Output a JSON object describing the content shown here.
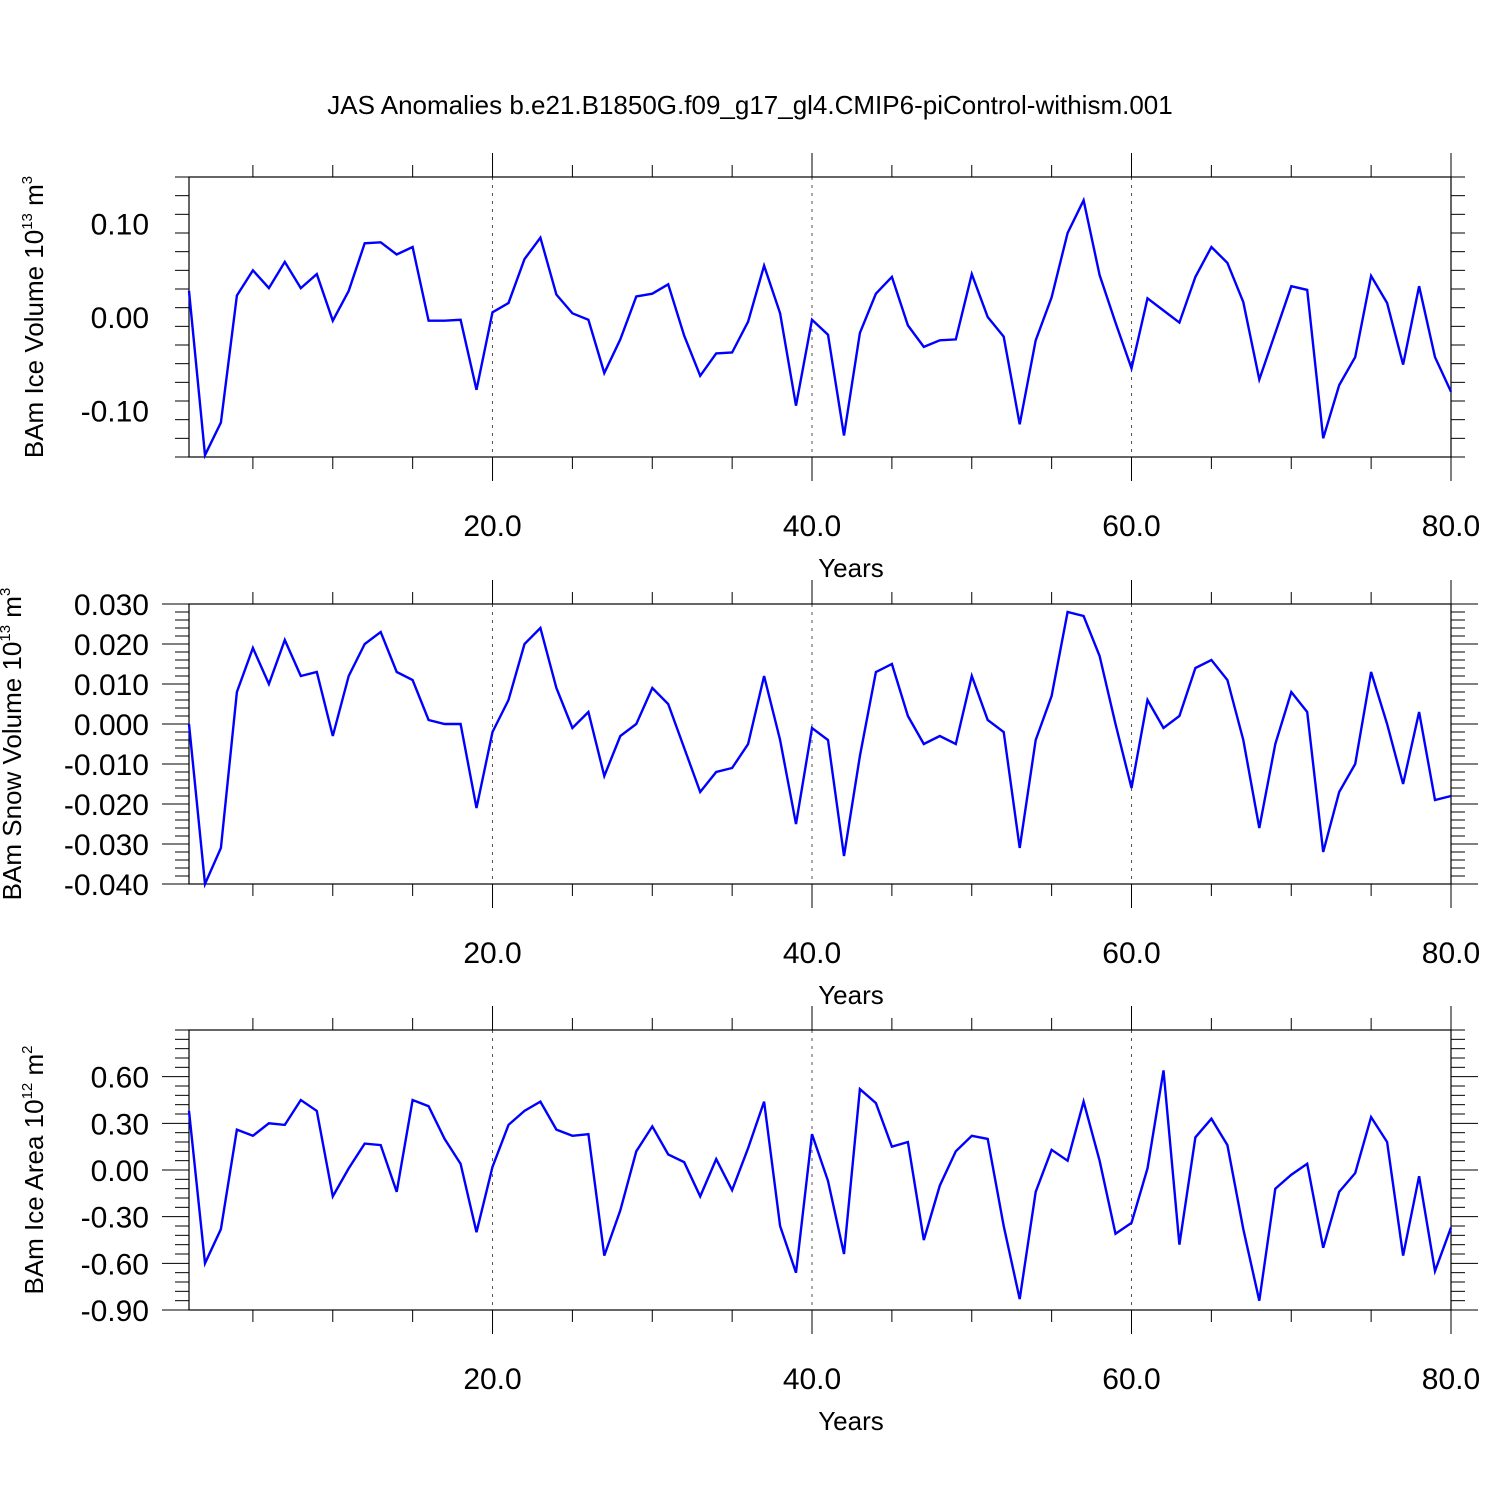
{
  "title": "JAS Anomalies b.e21.B1850G.f09_g17_gl4.CMIP6-piControl-withism.001",
  "colors": {
    "line": "#0000ff",
    "axis": "#000000",
    "grid": "#555555"
  },
  "chart_data": [
    {
      "type": "line",
      "xlabel": "Years",
      "ylabel_main": "BAm Ice Volume 10",
      "ylabel_exp": "13",
      "ylabel_unit": " m",
      "ylabel_unit_exp": "3",
      "xlim": [
        1,
        80
      ],
      "ylim": [
        -0.15,
        0.15
      ],
      "x_ticks": [
        20,
        40,
        60,
        80
      ],
      "x_tick_labels": [
        "20.0",
        "40.0",
        "60.0",
        "80.0"
      ],
      "y_ticks": [
        -0.1,
        0.0,
        0.1
      ],
      "y_tick_labels": [
        "-0.10",
        "0.00",
        "0.10"
      ],
      "grid_x": [
        20,
        40,
        60
      ],
      "values": [
        0.028,
        -0.148,
        -0.113,
        0.023,
        0.05,
        0.031,
        0.059,
        0.031,
        0.046,
        -0.004,
        0.028,
        0.079,
        0.08,
        0.067,
        0.075,
        -0.004,
        -0.004,
        -0.003,
        -0.078,
        0.005,
        0.015,
        0.062,
        0.085,
        0.024,
        0.004,
        -0.003,
        -0.06,
        -0.024,
        0.022,
        0.025,
        0.035,
        -0.02,
        -0.063,
        -0.039,
        -0.038,
        -0.005,
        0.055,
        0.004,
        -0.095,
        -0.003,
        -0.019,
        -0.127,
        -0.017,
        0.025,
        0.043,
        -0.009,
        -0.032,
        -0.025,
        -0.024,
        0.046,
        0.0,
        -0.021,
        -0.115,
        -0.025,
        0.021,
        0.09,
        0.125,
        0.045,
        -0.006,
        -0.055,
        0.02,
        0.007,
        -0.006,
        0.043,
        0.075,
        0.058,
        0.016,
        -0.067,
        -0.017,
        0.033,
        0.029,
        -0.13,
        -0.073,
        -0.043,
        0.044,
        0.015,
        -0.051,
        0.033,
        -0.043,
        -0.08
      ]
    },
    {
      "type": "line",
      "xlabel": "Years",
      "ylabel_main": "BAm Snow Volume 10",
      "ylabel_exp": "13",
      "ylabel_unit": " m",
      "ylabel_unit_exp": "3",
      "xlim": [
        1,
        80
      ],
      "ylim": [
        -0.04,
        0.03
      ],
      "x_ticks": [
        20,
        40,
        60,
        80
      ],
      "x_tick_labels": [
        "20.0",
        "40.0",
        "60.0",
        "80.0"
      ],
      "y_ticks": [
        -0.04,
        -0.03,
        -0.02,
        -0.01,
        0.0,
        0.01,
        0.02,
        0.03
      ],
      "y_tick_labels": [
        "-0.040",
        "-0.030",
        "-0.020",
        "-0.010",
        "0.000",
        "0.010",
        "0.020",
        "0.030"
      ],
      "grid_x": [
        20,
        40,
        60
      ],
      "values": [
        0.0,
        -0.04,
        -0.031,
        0.008,
        0.019,
        0.01,
        0.021,
        0.012,
        0.013,
        -0.003,
        0.012,
        0.02,
        0.023,
        0.013,
        0.011,
        0.001,
        0.0,
        0.0,
        -0.021,
        -0.002,
        0.006,
        0.02,
        0.024,
        0.009,
        -0.001,
        0.003,
        -0.013,
        -0.003,
        0.0,
        0.009,
        0.005,
        -0.006,
        -0.017,
        -0.012,
        -0.011,
        -0.005,
        0.012,
        -0.004,
        -0.025,
        -0.001,
        -0.004,
        -0.033,
        -0.008,
        0.013,
        0.015,
        0.002,
        -0.005,
        -0.003,
        -0.005,
        0.012,
        0.001,
        -0.002,
        -0.031,
        -0.004,
        0.007,
        0.028,
        0.027,
        0.017,
        0.0,
        -0.016,
        0.006,
        -0.001,
        0.002,
        0.014,
        0.016,
        0.011,
        -0.004,
        -0.026,
        -0.005,
        0.008,
        0.003,
        -0.032,
        -0.017,
        -0.01,
        0.013,
        0.0,
        -0.015,
        0.003,
        -0.019,
        -0.018
      ]
    },
    {
      "type": "line",
      "xlabel": "Years",
      "ylabel_main": "BAm Ice Area 10",
      "ylabel_exp": "12",
      "ylabel_unit": " m",
      "ylabel_unit_exp": "2",
      "xlim": [
        1,
        80
      ],
      "ylim": [
        -0.9,
        0.9
      ],
      "x_ticks": [
        20,
        40,
        60,
        80
      ],
      "x_tick_labels": [
        "20.0",
        "40.0",
        "60.0",
        "80.0"
      ],
      "y_ticks": [
        -0.9,
        -0.6,
        -0.3,
        0.0,
        0.3,
        0.6
      ],
      "y_tick_labels": [
        "-0.90",
        "-0.60",
        "-0.30",
        "0.00",
        "0.30",
        "0.60"
      ],
      "grid_x": [
        20,
        40,
        60
      ],
      "values": [
        0.38,
        -0.6,
        -0.38,
        0.26,
        0.22,
        0.3,
        0.29,
        0.45,
        0.38,
        -0.17,
        0.01,
        0.17,
        0.16,
        -0.14,
        0.45,
        0.41,
        0.2,
        0.04,
        -0.4,
        0.02,
        0.29,
        0.38,
        0.44,
        0.26,
        0.22,
        0.23,
        -0.55,
        -0.26,
        0.12,
        0.28,
        0.1,
        0.05,
        -0.17,
        0.07,
        -0.13,
        0.14,
        0.44,
        -0.36,
        -0.66,
        0.23,
        -0.07,
        -0.54,
        0.52,
        0.43,
        0.15,
        0.18,
        -0.45,
        -0.1,
        0.12,
        0.22,
        0.2,
        -0.36,
        -0.83,
        -0.14,
        0.13,
        0.06,
        0.44,
        0.06,
        -0.41,
        -0.34,
        0.01,
        0.64,
        -0.48,
        0.21,
        0.33,
        0.16,
        -0.38,
        -0.84,
        -0.12,
        -0.03,
        0.04,
        -0.5,
        -0.14,
        -0.02,
        0.34,
        0.18,
        -0.55,
        -0.04,
        -0.65,
        -0.37
      ]
    }
  ]
}
